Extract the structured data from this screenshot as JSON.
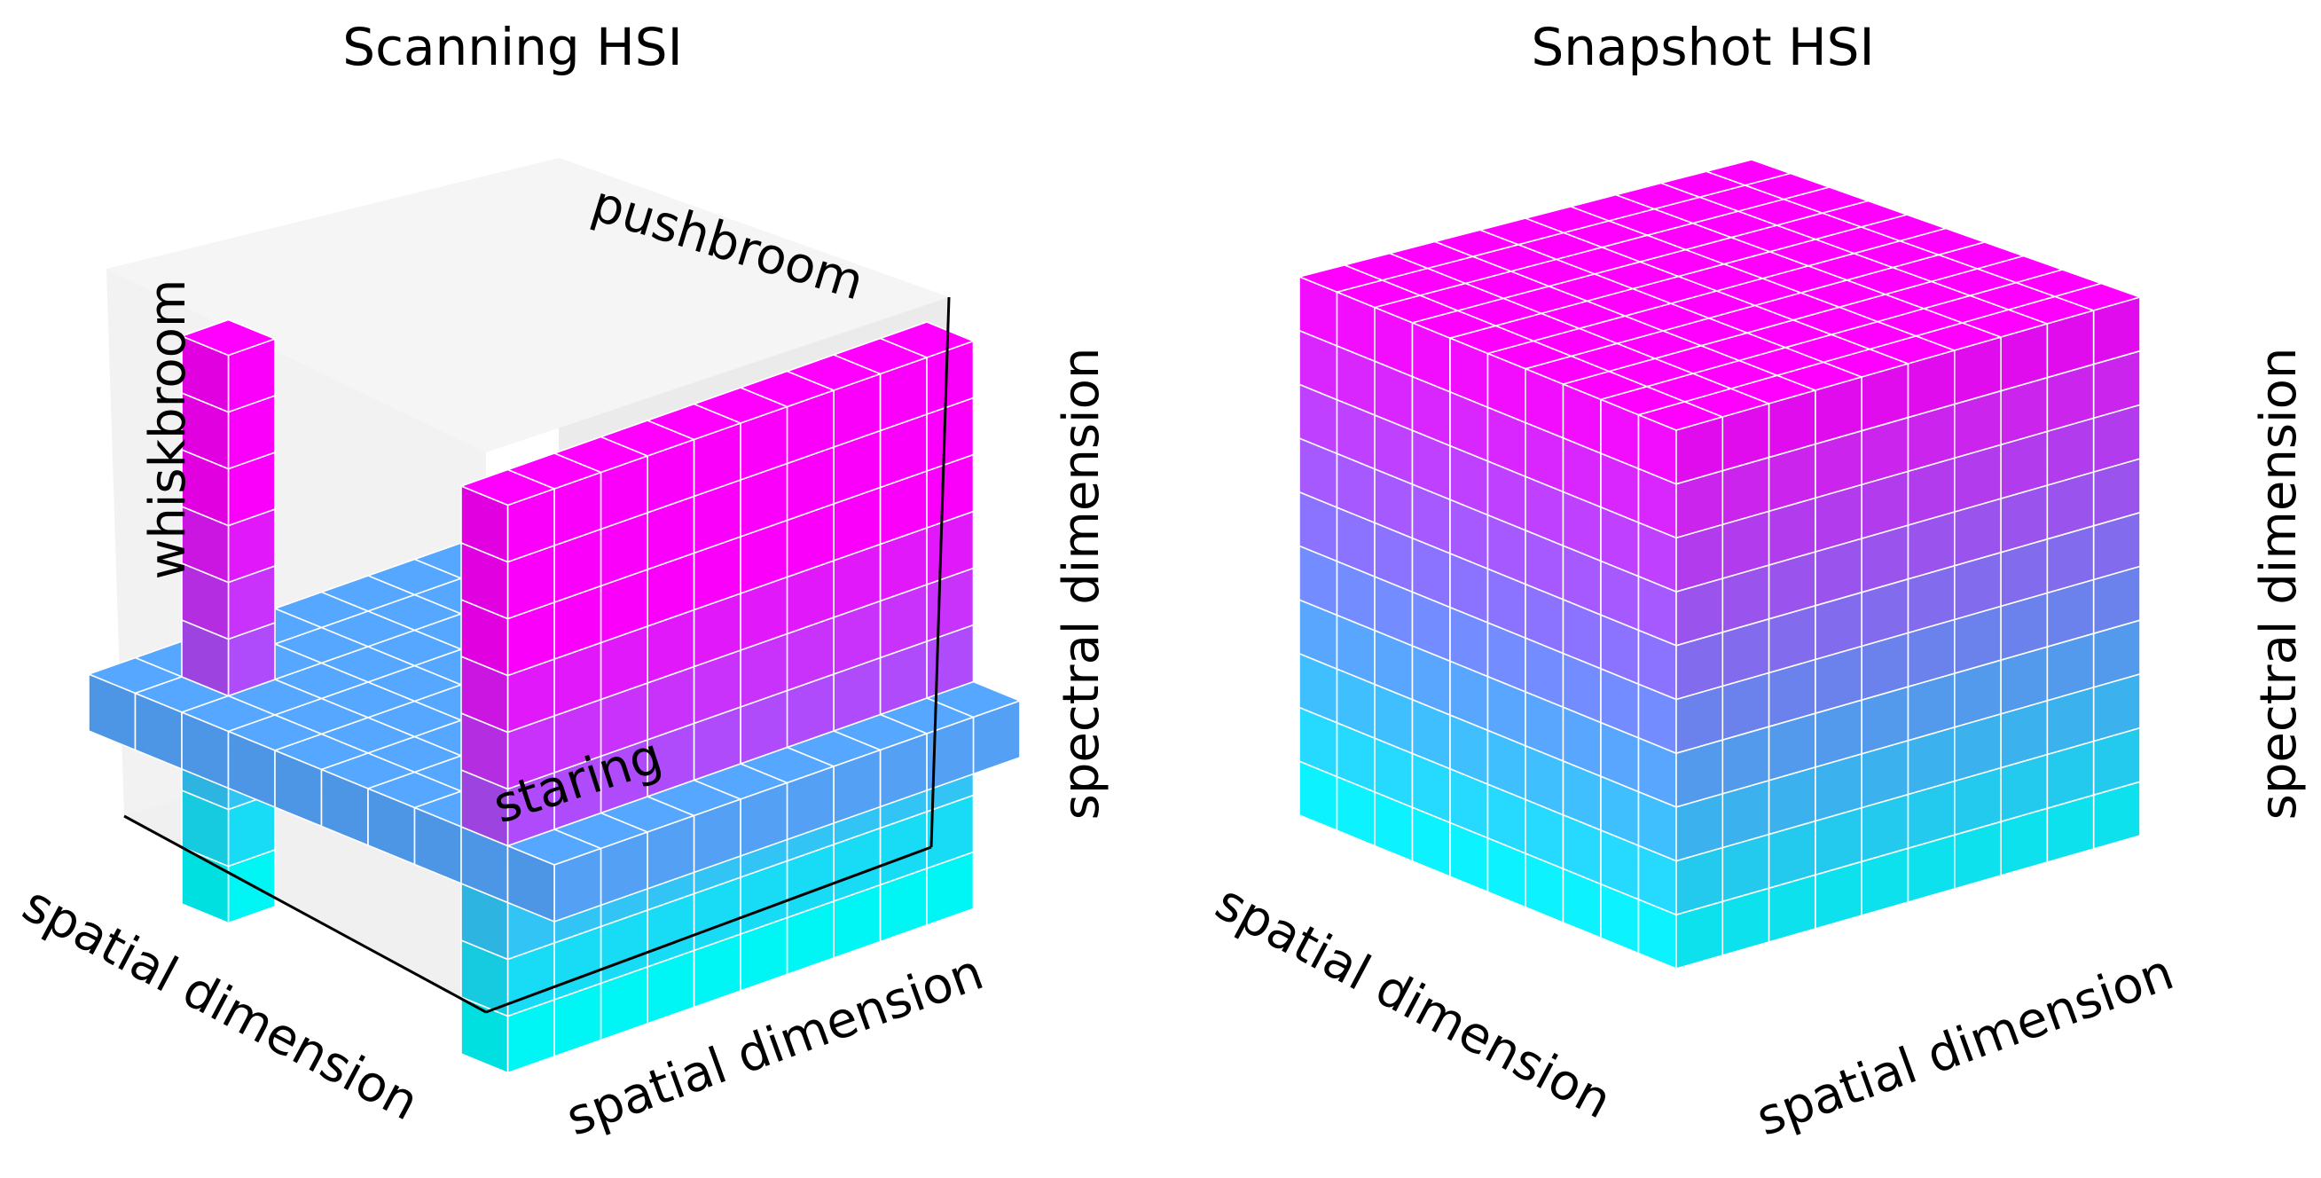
{
  "panels": [
    {
      "title": "Scanning HSI",
      "axis_labels": {
        "x": "spatial dimension",
        "y": "spatial dimension",
        "z": "spectral dimension"
      },
      "annotations": {
        "whiskbroom": "whiskbroom",
        "pushbroom": "pushbroom",
        "staring": "staring"
      },
      "grid": {
        "spatial_cells": 10,
        "spectral_cells": 10
      }
    },
    {
      "title": "Snapshot HSI",
      "axis_labels": {
        "x": "spatial dimension",
        "y": "spatial dimension",
        "z": "spectral dimension"
      },
      "grid": {
        "spatial_cells": 10,
        "spectral_cells": 10
      }
    }
  ],
  "colors": {
    "spectral_low": "#00ffff",
    "spectral_high": "#ff00ff",
    "staring_layer": "#56a7ff",
    "pane_fill": "#f2f2f2",
    "voxel_edge": "#ffffff",
    "axis_line": "#000000"
  }
}
